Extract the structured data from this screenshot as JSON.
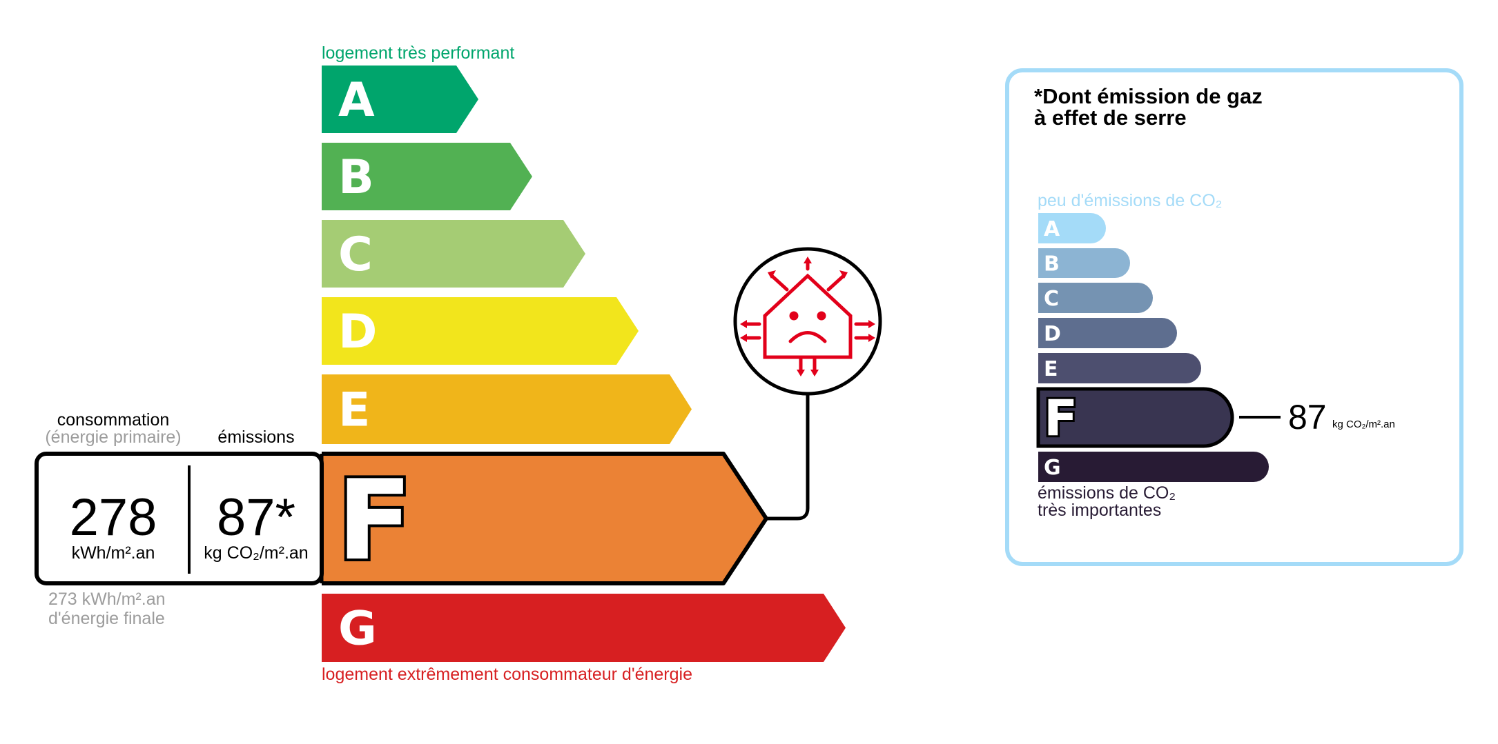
{
  "energy": {
    "top_label": "logement très performant",
    "bottom_label": "logement extrêmement consommateur d'énergie",
    "classes": [
      {
        "letter": "A",
        "color": "#00a56c"
      },
      {
        "letter": "B",
        "color": "#52b153"
      },
      {
        "letter": "C",
        "color": "#a5cc74"
      },
      {
        "letter": "D",
        "color": "#f2e51c"
      },
      {
        "letter": "E",
        "color": "#f0b51a"
      },
      {
        "letter": "F",
        "color": "#eb8235"
      },
      {
        "letter": "G",
        "color": "#d71f21"
      }
    ],
    "current_class": "F",
    "consumption_label": "consommation",
    "consumption_sub": "(énergie primaire)",
    "emissions_label": "émissions",
    "consumption_value": "278",
    "consumption_unit": "kWh/m².an",
    "emissions_value": "87*",
    "emissions_unit": "kg CO₂/m².an",
    "final_energy_value": "273 kWh/m².an",
    "final_energy_label": "d'énergie finale",
    "icon": "sad-house-heat-loss-icon",
    "icon_color": "#e2001a"
  },
  "ges": {
    "title_line1": "*Dont émission de gaz",
    "title_line2": "à effet de serre",
    "top_label": "peu d'émissions de CO₂",
    "bottom_line1": "émissions de CO₂",
    "bottom_line2": "très importantes",
    "border_color": "#a4dbf8",
    "classes": [
      {
        "letter": "A",
        "color": "#a4dbf8"
      },
      {
        "letter": "B",
        "color": "#8cb4d3"
      },
      {
        "letter": "C",
        "color": "#7593b2"
      },
      {
        "letter": "D",
        "color": "#5e6e8f"
      },
      {
        "letter": "E",
        "color": "#4d4f6f"
      },
      {
        "letter": "F",
        "color": "#393551"
      },
      {
        "letter": "G",
        "color": "#281b34"
      }
    ],
    "current_class": "F",
    "value": "87",
    "unit": "kg CO₂/m².an"
  }
}
